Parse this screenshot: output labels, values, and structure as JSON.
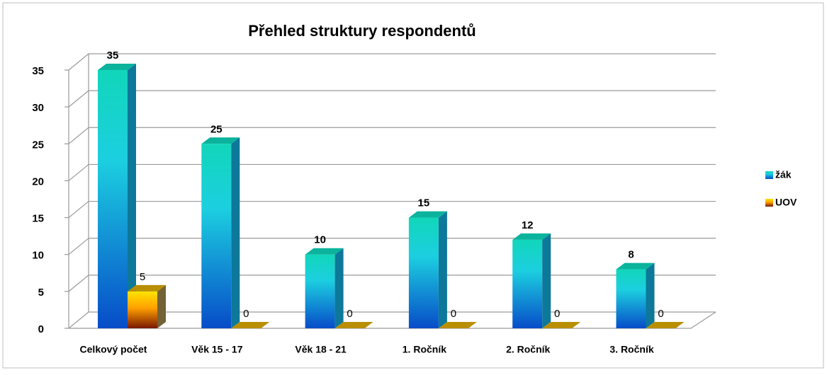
{
  "chart_data": {
    "type": "bar3d",
    "title": "Přehled struktury respondentů",
    "categories": [
      "Celkový počet",
      "Věk 15 - 17",
      "Věk 18 - 21",
      "1. Ročník",
      "2. Ročník",
      "3. Ročník"
    ],
    "series": [
      {
        "name": "žák",
        "color": "#1ccfe0",
        "values": [
          35,
          25,
          10,
          15,
          12,
          8
        ]
      },
      {
        "name": "UOV",
        "color": "#ffa000",
        "values": [
          5,
          0,
          0,
          0,
          0,
          0
        ]
      }
    ],
    "ylim": [
      0,
      35
    ],
    "yticks": [
      0,
      5,
      10,
      15,
      20,
      25,
      30,
      35
    ],
    "grid": true,
    "legend": "right"
  }
}
